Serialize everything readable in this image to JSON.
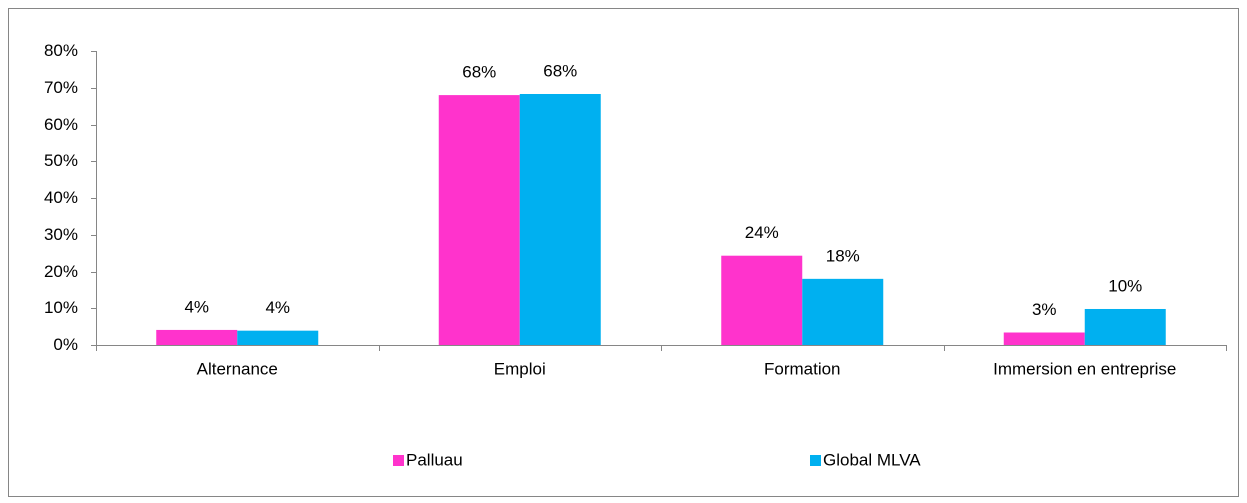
{
  "chart_data": {
    "type": "bar",
    "categories": [
      "Alternance",
      "Emploi",
      "Formation",
      "Immersion en entreprise"
    ],
    "series": [
      {
        "name": "Palluau",
        "color": "#ff33cc",
        "values": [
          4.1,
          68,
          24.3,
          3.4
        ],
        "value_labels": [
          "4%",
          "68%",
          "24%",
          "3%"
        ]
      },
      {
        "name": "Global MLVA",
        "color": "#00b0f0",
        "values": [
          3.9,
          68.3,
          18,
          9.8
        ],
        "value_labels": [
          "4%",
          "68%",
          "18%",
          "10%"
        ]
      }
    ],
    "ylim": [
      0,
      80
    ],
    "yticks": [
      {
        "value": 0,
        "label": "0%"
      },
      {
        "value": 10,
        "label": "10%"
      },
      {
        "value": 20,
        "label": "20%"
      },
      {
        "value": 30,
        "label": "30%"
      },
      {
        "value": 40,
        "label": "40%"
      },
      {
        "value": 50,
        "label": "50%"
      },
      {
        "value": 60,
        "label": "60%"
      },
      {
        "value": 70,
        "label": "70%"
      },
      {
        "value": 80,
        "label": "80%"
      }
    ],
    "grid": false
  }
}
